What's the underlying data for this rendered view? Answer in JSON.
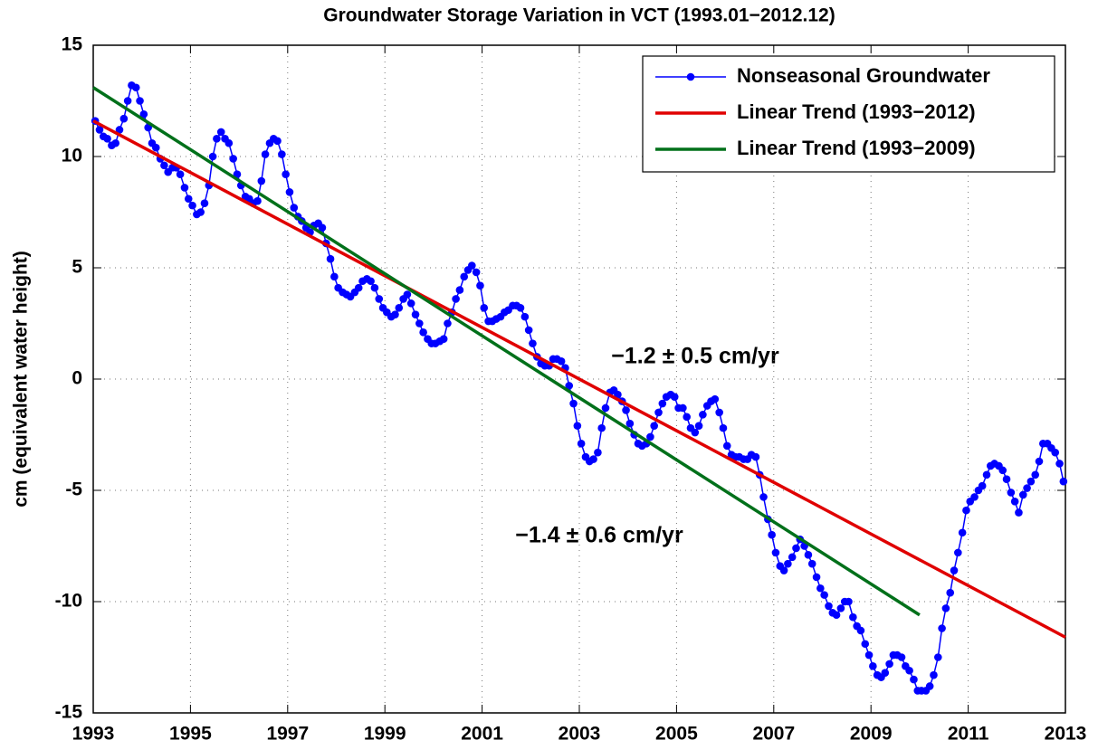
{
  "chart_data": {
    "type": "line",
    "title": "Groundwater Storage Variation in VCT (1993.01−2012.12)",
    "ylabel": "cm (equivalent water height)",
    "xlim": [
      1993,
      2013
    ],
    "xticks": [
      1993,
      1995,
      1997,
      1999,
      2001,
      2003,
      2005,
      2007,
      2009,
      2011,
      2013
    ],
    "ylim": [
      -15,
      15
    ],
    "yticks": [
      -15,
      -10,
      -5,
      0,
      5,
      10,
      15
    ],
    "grid": true,
    "legend": "upper right",
    "series": [
      {
        "name": "Nonseasonal Groundwater",
        "color": "#0000ff",
        "marker": "o",
        "x": [
          1993.04,
          1993.13,
          1993.21,
          1993.29,
          1993.38,
          1993.46,
          1993.54,
          1993.63,
          1993.71,
          1993.79,
          1993.88,
          1993.96,
          1994.04,
          1994.13,
          1994.21,
          1994.29,
          1994.38,
          1994.46,
          1994.54,
          1994.63,
          1994.71,
          1994.79,
          1994.88,
          1994.96,
          1995.04,
          1995.13,
          1995.21,
          1995.29,
          1995.38,
          1995.46,
          1995.54,
          1995.63,
          1995.71,
          1995.79,
          1995.88,
          1995.96,
          1996.04,
          1996.13,
          1996.21,
          1996.29,
          1996.38,
          1996.46,
          1996.54,
          1996.63,
          1996.71,
          1996.79,
          1996.88,
          1996.96,
          1997.04,
          1997.13,
          1997.21,
          1997.29,
          1997.38,
          1997.46,
          1997.54,
          1997.63,
          1997.71,
          1997.79,
          1997.88,
          1997.96,
          1998.04,
          1998.13,
          1998.21,
          1998.29,
          1998.38,
          1998.46,
          1998.54,
          1998.63,
          1998.71,
          1998.79,
          1998.88,
          1998.96,
          1999.04,
          1999.13,
          1999.21,
          1999.29,
          1999.38,
          1999.46,
          1999.54,
          1999.63,
          1999.71,
          1999.79,
          1999.88,
          1999.96,
          2000.04,
          2000.13,
          2000.21,
          2000.29,
          2000.38,
          2000.46,
          2000.54,
          2000.63,
          2000.71,
          2000.79,
          2000.88,
          2000.96,
          2001.04,
          2001.13,
          2001.21,
          2001.29,
          2001.38,
          2001.46,
          2001.54,
          2001.63,
          2001.71,
          2001.79,
          2001.88,
          2001.96,
          2002.04,
          2002.13,
          2002.21,
          2002.29,
          2002.38,
          2002.46,
          2002.54,
          2002.63,
          2002.71,
          2002.79,
          2002.88,
          2002.96,
          2003.04,
          2003.13,
          2003.21,
          2003.29,
          2003.38,
          2003.46,
          2003.54,
          2003.63,
          2003.71,
          2003.79,
          2003.88,
          2003.96,
          2004.04,
          2004.13,
          2004.21,
          2004.29,
          2004.38,
          2004.46,
          2004.54,
          2004.63,
          2004.71,
          2004.79,
          2004.88,
          2004.96,
          2005.04,
          2005.13,
          2005.21,
          2005.29,
          2005.38,
          2005.46,
          2005.54,
          2005.63,
          2005.71,
          2005.79,
          2005.88,
          2005.96,
          2006.04,
          2006.13,
          2006.21,
          2006.29,
          2006.38,
          2006.46,
          2006.54,
          2006.63,
          2006.71,
          2006.79,
          2006.88,
          2006.96,
          2007.04,
          2007.13,
          2007.21,
          2007.29,
          2007.38,
          2007.46,
          2007.54,
          2007.63,
          2007.71,
          2007.79,
          2007.88,
          2007.96,
          2008.04,
          2008.13,
          2008.21,
          2008.29,
          2008.38,
          2008.46,
          2008.54,
          2008.63,
          2008.71,
          2008.79,
          2008.88,
          2008.96,
          2009.04,
          2009.13,
          2009.21,
          2009.29,
          2009.38,
          2009.46,
          2009.54,
          2009.63,
          2009.71,
          2009.79,
          2009.88,
          2009.96,
          2010.04,
          2010.13,
          2010.21,
          2010.29,
          2010.38,
          2010.46,
          2010.54,
          2010.63,
          2010.71,
          2010.79,
          2010.88,
          2010.96,
          2011.04,
          2011.13,
          2011.21,
          2011.29,
          2011.38,
          2011.46,
          2011.54,
          2011.63,
          2011.71,
          2011.79,
          2011.88,
          2011.96,
          2012.04,
          2012.13,
          2012.21,
          2012.29,
          2012.38,
          2012.46,
          2012.54,
          2012.63,
          2012.71,
          2012.79,
          2012.88,
          2012.96
        ],
        "values": [
          11.6,
          11.2,
          10.9,
          10.8,
          10.5,
          10.6,
          11.2,
          11.7,
          12.5,
          13.2,
          13.1,
          12.5,
          11.9,
          11.3,
          10.6,
          10.4,
          9.9,
          9.6,
          9.3,
          9.5,
          9.5,
          9.2,
          8.6,
          8.1,
          7.8,
          7.4,
          7.5,
          7.9,
          8.7,
          10.0,
          10.8,
          11.1,
          10.8,
          10.6,
          9.9,
          9.2,
          8.7,
          8.2,
          8.1,
          7.9,
          8.0,
          8.9,
          10.1,
          10.6,
          10.8,
          10.7,
          10.1,
          9.2,
          8.4,
          7.7,
          7.3,
          7.1,
          6.8,
          6.6,
          6.9,
          7.0,
          6.8,
          6.1,
          5.4,
          4.6,
          4.1,
          3.9,
          3.8,
          3.7,
          3.9,
          4.1,
          4.4,
          4.5,
          4.4,
          4.1,
          3.6,
          3.2,
          3.0,
          2.8,
          2.9,
          3.2,
          3.6,
          3.8,
          3.4,
          2.9,
          2.5,
          2.1,
          1.8,
          1.6,
          1.6,
          1.7,
          1.8,
          2.5,
          3.0,
          3.6,
          4.0,
          4.6,
          4.9,
          5.1,
          4.8,
          4.2,
          3.2,
          2.6,
          2.6,
          2.7,
          2.8,
          3.0,
          3.1,
          3.3,
          3.3,
          3.2,
          2.8,
          2.2,
          1.6,
          1.0,
          0.7,
          0.6,
          0.6,
          0.9,
          0.9,
          0.8,
          0.5,
          -0.3,
          -1.1,
          -2.1,
          -2.9,
          -3.5,
          -3.7,
          -3.6,
          -3.3,
          -2.2,
          -1.3,
          -0.6,
          -0.5,
          -0.7,
          -1.0,
          -1.4,
          -2.0,
          -2.5,
          -2.9,
          -3.0,
          -2.9,
          -2.6,
          -2.1,
          -1.5,
          -1.1,
          -0.8,
          -0.7,
          -0.8,
          -1.3,
          -1.3,
          -1.7,
          -2.2,
          -2.4,
          -2.1,
          -1.6,
          -1.2,
          -1.0,
          -0.9,
          -1.5,
          -2.2,
          -3.0,
          -3.4,
          -3.5,
          -3.5,
          -3.6,
          -3.6,
          -3.4,
          -3.5,
          -4.3,
          -5.3,
          -6.3,
          -7.0,
          -7.8,
          -8.4,
          -8.6,
          -8.3,
          -8.0,
          -7.6,
          -7.2,
          -7.5,
          -7.9,
          -8.3,
          -8.9,
          -9.4,
          -9.7,
          -10.2,
          -10.5,
          -10.6,
          -10.3,
          -10.0,
          -10.0,
          -10.7,
          -11.1,
          -11.3,
          -11.9,
          -12.4,
          -12.9,
          -13.3,
          -13.4,
          -13.2,
          -12.8,
          -12.4,
          -12.4,
          -12.5,
          -12.9,
          -13.1,
          -13.5,
          -14.0,
          -14.0,
          -14.0,
          -13.8,
          -13.3,
          -12.5,
          -11.2,
          -10.3,
          -9.6,
          -8.6,
          -7.8,
          -6.9,
          -5.9,
          -5.5,
          -5.3,
          -5.0,
          -4.8,
          -4.3,
          -3.9,
          -3.8,
          -3.9,
          -4.1,
          -4.5,
          -5.1,
          -5.5,
          -6.0,
          -5.2,
          -4.9,
          -4.6,
          -4.3,
          -3.7,
          -2.9,
          -2.9,
          -3.1,
          -3.3,
          -3.8,
          -4.6
        ]
      },
      {
        "name": "Linear Trend (1993−2012)",
        "color": "#e00000",
        "x": [
          1993,
          2013
        ],
        "values": [
          11.6,
          -11.6
        ]
      },
      {
        "name": "Linear Trend (1993−2009)",
        "color": "#00701a",
        "x": [
          1993,
          2010
        ],
        "values": [
          13.1,
          -10.6
        ]
      }
    ],
    "annotations": [
      {
        "text": "−1.2 ± 0.5 cm/yr",
        "color": "#e00000"
      },
      {
        "text": "−1.4 ± 0.6 cm/yr",
        "color": "#00701a"
      }
    ]
  }
}
